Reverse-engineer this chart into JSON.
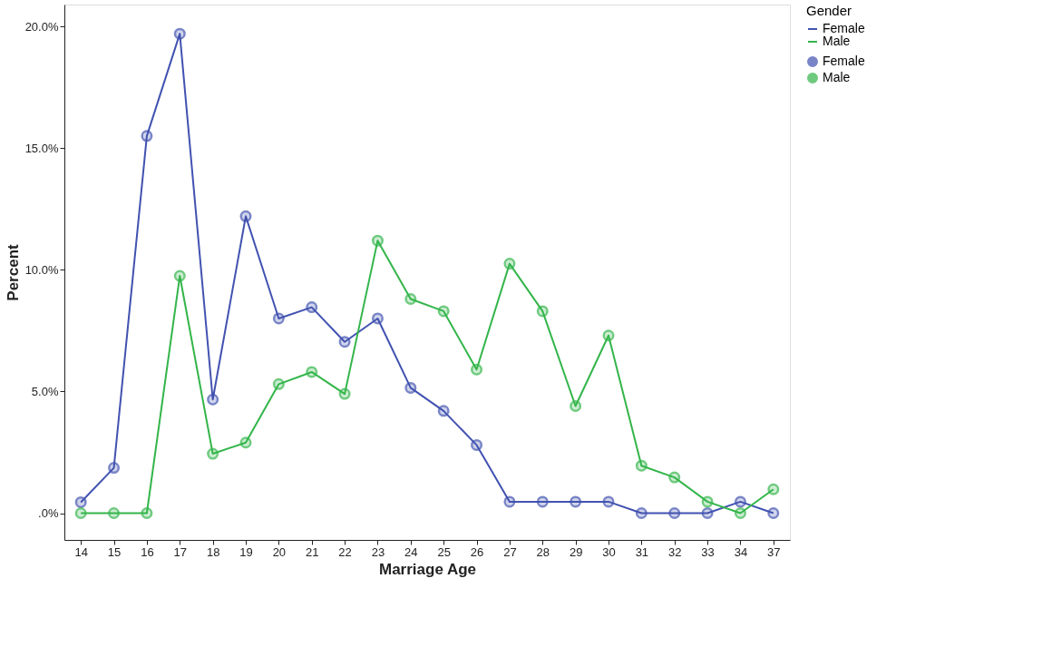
{
  "chart_data": {
    "type": "line",
    "xlabel": "Marriage Age",
    "ylabel": "Percent",
    "legend_title": "Gender",
    "categories": [
      "14",
      "15",
      "16",
      "17",
      "18",
      "19",
      "20",
      "21",
      "22",
      "23",
      "24",
      "25",
      "26",
      "27",
      "28",
      "29",
      "30",
      "31",
      "32",
      "33",
      "34",
      "37"
    ],
    "series": [
      {
        "name": "Female",
        "color": "#4152b0",
        "values": [
          0.45,
          1.86,
          15.5,
          19.7,
          4.67,
          12.2,
          8.0,
          8.46,
          7.04,
          8.0,
          5.15,
          4.2,
          2.8,
          0.47,
          0.47,
          0.47,
          0.47,
          0,
          0,
          0,
          0.47,
          0
        ]
      },
      {
        "name": "Male",
        "color": "#33b54a",
        "values": [
          0,
          0,
          0,
          9.75,
          2.44,
          2.9,
          5.3,
          5.8,
          4.9,
          11.2,
          8.8,
          8.3,
          5.9,
          10.25,
          8.3,
          4.4,
          7.3,
          1.95,
          1.47,
          0.47,
          0,
          0.98
        ]
      }
    ],
    "ylim": [
      -1.1,
      20.9
    ],
    "yticks": [
      {
        "value": 0,
        "label": ".0%"
      },
      {
        "value": 5,
        "label": "5.0%"
      },
      {
        "value": 10,
        "label": "10.0%"
      },
      {
        "value": 15,
        "label": "15.0%"
      },
      {
        "value": 20,
        "label": "20.0%"
      }
    ],
    "grid": false,
    "legend": "right",
    "marker": "circle",
    "line_style": "solid"
  }
}
